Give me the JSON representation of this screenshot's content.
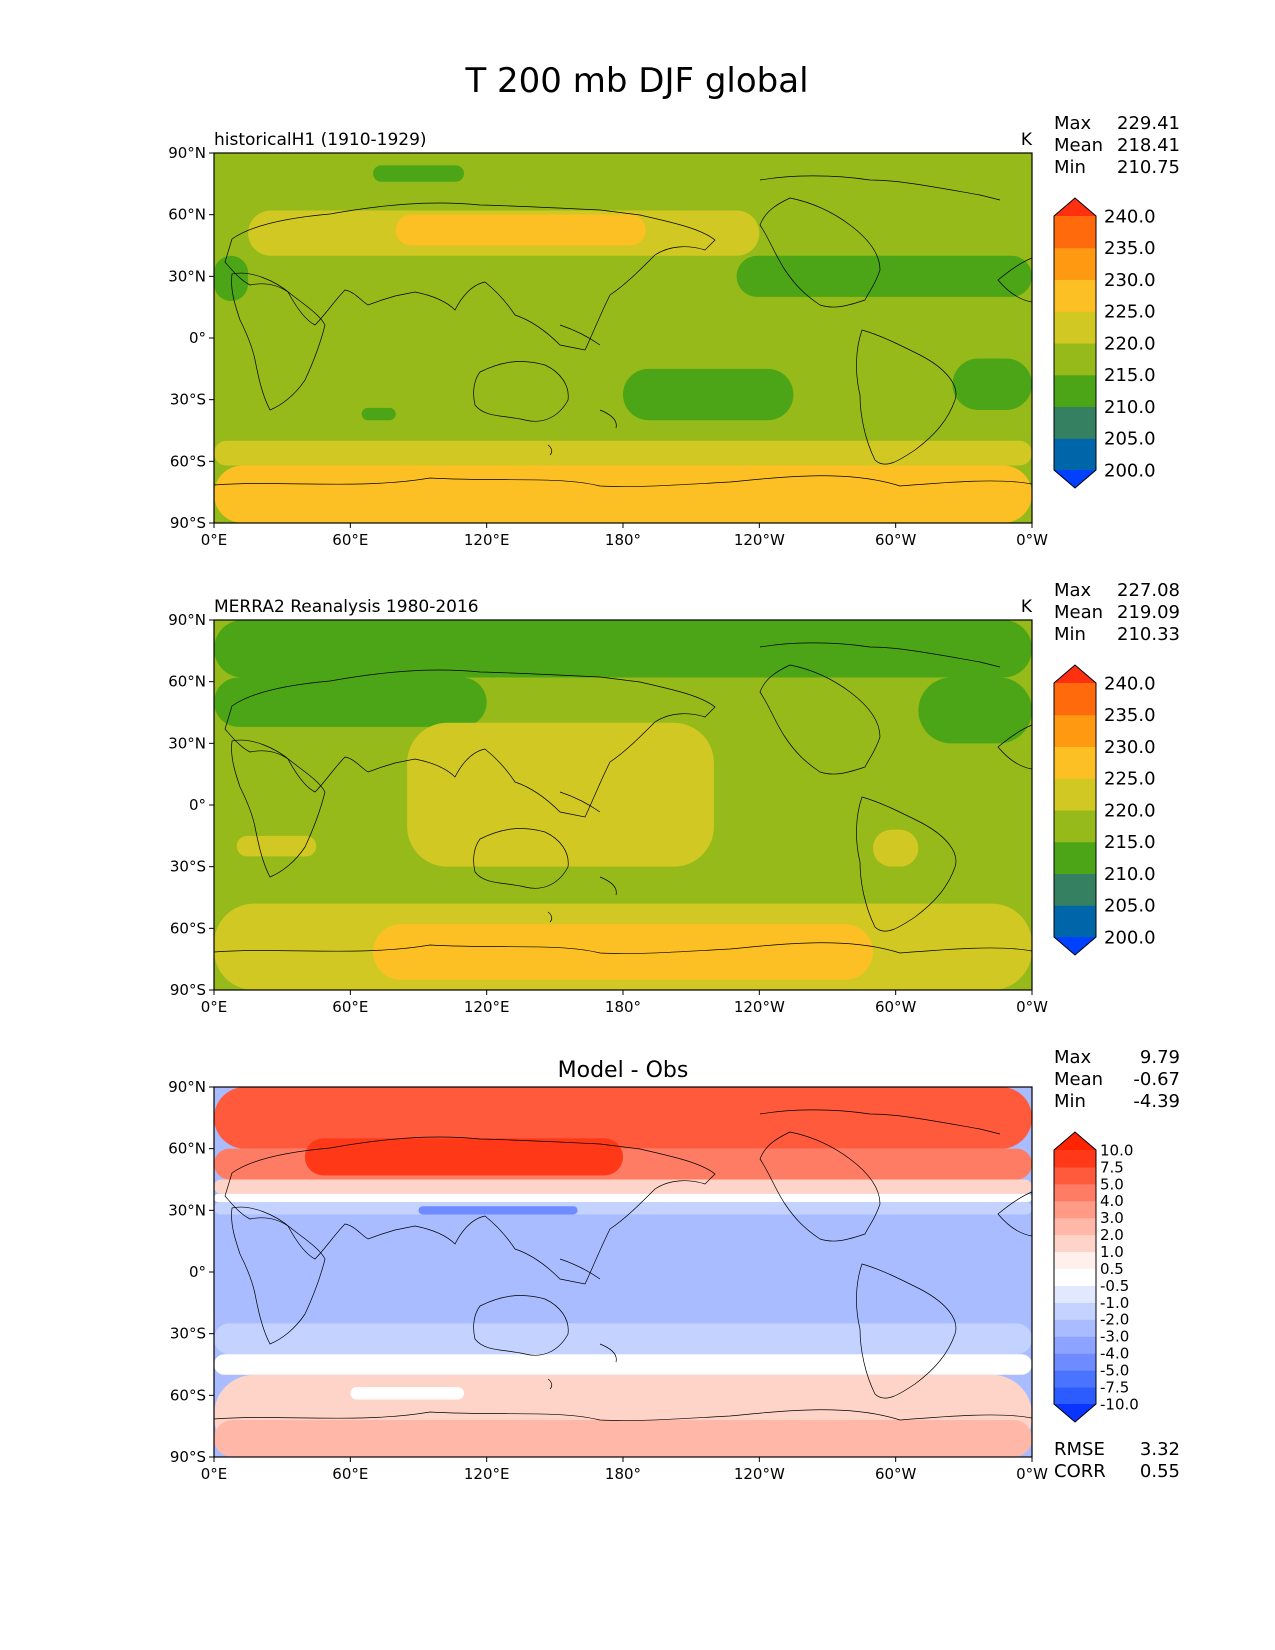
{
  "title": "T 200 mb DJF global",
  "axes": {
    "lat_ticks": [
      "90°N",
      "60°N",
      "30°N",
      "0°",
      "30°S",
      "60°S",
      "90°S"
    ],
    "lon_ticks": [
      "0°E",
      "60°E",
      "120°E",
      "180°",
      "120°W",
      "60°W",
      "0°W"
    ]
  },
  "chart_data": [
    {
      "type": "heatmap",
      "id": "model",
      "title": "historicalH1 (1910-1929)",
      "units": "K",
      "stats": [
        {
          "label": "Max",
          "value": "229.41"
        },
        {
          "label": "Mean",
          "value": "218.41"
        },
        {
          "label": "Min",
          "value": "210.75"
        }
      ],
      "colorbar": {
        "levels": [
          200.0,
          205.0,
          210.0,
          215.0,
          220.0,
          225.0,
          230.0,
          235.0,
          240.0
        ],
        "tick_labels": [
          "200.0",
          "205.0",
          "210.0",
          "215.0",
          "220.0",
          "225.0",
          "230.0",
          "235.0",
          "240.0"
        ],
        "colors": [
          "#0040ff",
          "#0066aa",
          "#358060",
          "#4ba516",
          "#95ba1a",
          "#d2c823",
          "#fcc024",
          "#ff9912",
          "#ff6a0c",
          "#ff3010"
        ]
      },
      "background_value": 217,
      "regions": [
        {
          "lon0": 0,
          "lon1": 360,
          "lat0": -62,
          "lat1": -50,
          "value": 222
        },
        {
          "lon0": 0,
          "lon1": 360,
          "lat0": -90,
          "lat1": -62,
          "value": 226
        },
        {
          "lon0": 15,
          "lon1": 240,
          "lat0": 40,
          "lat1": 62,
          "value": 222
        },
        {
          "lon0": 80,
          "lon1": 190,
          "lat0": 45,
          "lat1": 60,
          "value": 226
        },
        {
          "lon0": 70,
          "lon1": 110,
          "lat0": 76,
          "lat1": 84,
          "value": 213
        },
        {
          "lon0": 0,
          "lon1": 15,
          "lat0": 18,
          "lat1": 40,
          "value": 213
        },
        {
          "lon0": 230,
          "lon1": 360,
          "lat0": 20,
          "lat1": 40,
          "value": 213
        },
        {
          "lon0": 180,
          "lon1": 255,
          "lat0": -40,
          "lat1": -15,
          "value": 213
        },
        {
          "lon0": 325,
          "lon1": 360,
          "lat0": -35,
          "lat1": -10,
          "value": 213
        },
        {
          "lon0": 65,
          "lon1": 80,
          "lat0": -40,
          "lat1": -34,
          "value": 213
        }
      ]
    },
    {
      "type": "heatmap",
      "id": "obs",
      "title": "MERRA2 Reanalysis 1980-2016",
      "units": "K",
      "stats": [
        {
          "label": "Max",
          "value": "227.08"
        },
        {
          "label": "Mean",
          "value": "219.09"
        },
        {
          "label": "Min",
          "value": "210.33"
        }
      ],
      "colorbar": {
        "levels": [
          200.0,
          205.0,
          210.0,
          215.0,
          220.0,
          225.0,
          230.0,
          235.0,
          240.0
        ],
        "tick_labels": [
          "200.0",
          "205.0",
          "210.0",
          "215.0",
          "220.0",
          "225.0",
          "230.0",
          "235.0",
          "240.0"
        ],
        "colors": [
          "#0040ff",
          "#0066aa",
          "#358060",
          "#4ba516",
          "#95ba1a",
          "#d2c823",
          "#fcc024",
          "#ff9912",
          "#ff6a0c",
          "#ff3010"
        ]
      },
      "background_value": 217,
      "regions": [
        {
          "lon0": 0,
          "lon1": 360,
          "lat0": 62,
          "lat1": 90,
          "value": 213
        },
        {
          "lon0": 0,
          "lon1": 120,
          "lat0": 38,
          "lat1": 62,
          "value": 213
        },
        {
          "lon0": 310,
          "lon1": 360,
          "lat0": 30,
          "lat1": 62,
          "value": 213
        },
        {
          "lon0": 85,
          "lon1": 220,
          "lat0": -30,
          "lat1": 40,
          "value": 222
        },
        {
          "lon0": 0,
          "lon1": 360,
          "lat0": -90,
          "lat1": -48,
          "value": 222
        },
        {
          "lon0": 70,
          "lon1": 290,
          "lat0": -85,
          "lat1": -58,
          "value": 226
        },
        {
          "lon0": 10,
          "lon1": 45,
          "lat0": -25,
          "lat1": -15,
          "value": 222
        },
        {
          "lon0": 290,
          "lon1": 310,
          "lat0": -30,
          "lat1": -12,
          "value": 222
        }
      ]
    },
    {
      "type": "heatmap",
      "id": "diff",
      "title": "Model - Obs",
      "units": "",
      "stats": [
        {
          "label": "Max",
          "value": "9.79"
        },
        {
          "label": "Mean",
          "value": "-0.67"
        },
        {
          "label": "Min",
          "value": "-4.39"
        }
      ],
      "metrics": [
        {
          "label": "RMSE",
          "value": "3.32"
        },
        {
          "label": "CORR",
          "value": "0.55"
        }
      ],
      "colorbar": {
        "levels": [
          -10.0,
          -7.5,
          -5.0,
          -4.0,
          -3.0,
          -2.0,
          -1.0,
          -0.5,
          0.5,
          1.0,
          2.0,
          3.0,
          4.0,
          5.0,
          7.5,
          10.0
        ],
        "tick_labels": [
          "-10.0",
          "-7.5",
          "-5.0",
          "-4.0",
          "-3.0",
          "-2.0",
          "-1.0",
          "-0.5",
          "0.5",
          "1.0",
          "2.0",
          "3.0",
          "4.0",
          "5.0",
          "7.5",
          "10.0"
        ],
        "colors": [
          "#0a34ff",
          "#2c5cff",
          "#4a74ff",
          "#6e8cff",
          "#8ca4ff",
          "#a8bcff",
          "#c4d2ff",
          "#e2e8ff",
          "#ffffff",
          "#fff0ec",
          "#ffd4c8",
          "#ffb8a8",
          "#ff9a86",
          "#ff7c64",
          "#ff5a3c",
          "#ff3818",
          "#ff2400"
        ]
      },
      "background_value": -2.5,
      "regions": [
        {
          "lon0": 0,
          "lon1": 360,
          "lat0": 60,
          "lat1": 90,
          "value": 6
        },
        {
          "lon0": 0,
          "lon1": 360,
          "lat0": 45,
          "lat1": 60,
          "value": 4.5
        },
        {
          "lon0": 40,
          "lon1": 180,
          "lat0": 47,
          "lat1": 65,
          "value": 8
        },
        {
          "lon0": 0,
          "lon1": 360,
          "lat0": 38,
          "lat1": 45,
          "value": 1.5
        },
        {
          "lon0": 0,
          "lon1": 360,
          "lat0": 34,
          "lat1": 38,
          "value": 0
        },
        {
          "lon0": 0,
          "lon1": 360,
          "lat0": 28,
          "lat1": 34,
          "value": -1.5
        },
        {
          "lon0": 90,
          "lon1": 160,
          "lat0": 28,
          "lat1": 32,
          "value": -4.5
        },
        {
          "lon0": 0,
          "lon1": 360,
          "lat0": -40,
          "lat1": -25,
          "value": -1.5
        },
        {
          "lon0": 0,
          "lon1": 360,
          "lat0": -50,
          "lat1": -40,
          "value": 0
        },
        {
          "lon0": 0,
          "lon1": 360,
          "lat0": -90,
          "lat1": -50,
          "value": 1.5
        },
        {
          "lon0": 0,
          "lon1": 360,
          "lat0": -90,
          "lat1": -72,
          "value": 2.5
        },
        {
          "lon0": 60,
          "lon1": 110,
          "lat0": -62,
          "lat1": -56,
          "value": 0
        }
      ]
    }
  ]
}
